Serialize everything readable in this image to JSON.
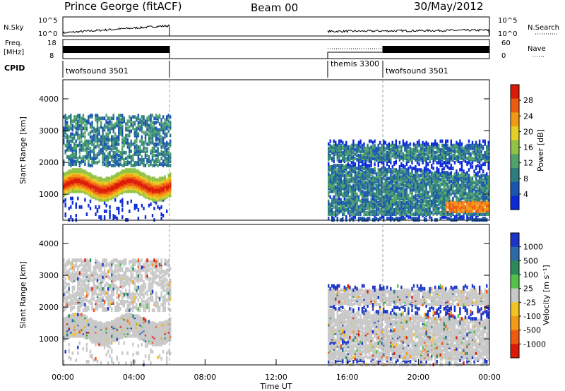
{
  "header": {
    "station": "Prince George (fitACF)",
    "beam": "Beam 00",
    "date": "30/May/2012"
  },
  "strips": {
    "nsky_label": "N.Sky",
    "nsearch_label": "N.Search",
    "freq_label_line1": "Freq.",
    "freq_label_line2": "[MHz]",
    "nave_label": "Nave",
    "cpid_label": "CPID",
    "nsky_ticks": [
      "10^5",
      "10^0"
    ],
    "nsearch_ticks": [
      "10^5",
      "10^0"
    ],
    "freq_ticks": [
      "18",
      "8"
    ],
    "nave_ticks": [
      "60",
      "0"
    ]
  },
  "cpid_segments": [
    {
      "start_hour": 0,
      "end_hour": 6,
      "label": "twofsound 3501"
    },
    {
      "start_hour": 14.9,
      "end_hour": 18,
      "label": "themis 3300"
    },
    {
      "start_hour": 18,
      "end_hour": 24,
      "label": "twofsound 3501"
    }
  ],
  "chart_data": [
    {
      "type": "heatmap",
      "name": "power",
      "ylabel": "Slant Range [km]",
      "xlabel": "",
      "xlim": [
        0,
        24
      ],
      "ylim": [
        180,
        4600
      ],
      "yticks": [
        "1000",
        "2000",
        "3000",
        "4000"
      ],
      "colorbar_label": "Power [dB]",
      "colorbar_ticks": [
        "4",
        "8",
        "12",
        "16",
        "20",
        "24",
        "28"
      ],
      "colorbar_range": [
        0,
        32
      ],
      "colors": [
        "#0c2bd8",
        "#1a55b0",
        "#2f7e7e",
        "#4fa36b",
        "#8fc245",
        "#e4cf23",
        "#f39a15",
        "#ee5a0e",
        "#dd1a09"
      ],
      "data_hours": [
        [
          0,
          6
        ],
        [
          14.9,
          24
        ]
      ]
    },
    {
      "type": "heatmap",
      "name": "velocity",
      "ylabel": "Slant Range [km]",
      "xlabel": "Time UT",
      "xlim": [
        0,
        24
      ],
      "ylim": [
        180,
        4600
      ],
      "yticks": [
        "1000",
        "2000",
        "3000",
        "4000"
      ],
      "xticks": [
        "00:00",
        "04:00",
        "08:00",
        "12:00",
        "16:00",
        "20:00",
        "00:00"
      ],
      "colorbar_label": "Velocity [m s⁻¹]",
      "colorbar_ticks": [
        "1000",
        "500",
        "100",
        "25",
        "-25",
        "-100",
        "-500",
        "-1000"
      ],
      "colors": [
        "#1a35c8",
        "#2f6aa8",
        "#2c8a5a",
        "#54c24a",
        "#c8c8c8",
        "#f3c225",
        "#f39a15",
        "#ee5a0e",
        "#dd1a09"
      ],
      "data_hours": [
        [
          0,
          6
        ],
        [
          14.9,
          24
        ]
      ]
    }
  ]
}
